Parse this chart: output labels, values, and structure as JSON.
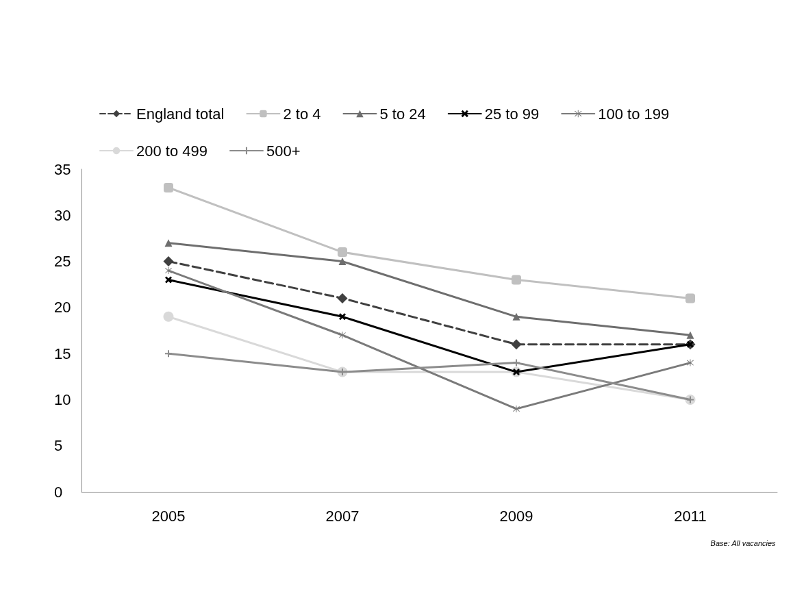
{
  "chart_data": {
    "type": "line",
    "categories": [
      "2005",
      "2007",
      "2009",
      "2011"
    ],
    "series": [
      {
        "name": "England total",
        "color": "#404040",
        "values": [
          25,
          21,
          16,
          16
        ],
        "marker": "diamond",
        "line_style": "dashed"
      },
      {
        "name": "2 to 4",
        "color": "#c0c0c0",
        "values": [
          33,
          26,
          23,
          21
        ],
        "marker": "square",
        "line_style": "solid"
      },
      {
        "name": "5 to 24",
        "color": "#6e6e6e",
        "values": [
          27,
          25,
          19,
          17
        ],
        "marker": "triangle",
        "line_style": "solid"
      },
      {
        "name": "25 to 99",
        "color": "#000000",
        "values": [
          23,
          19,
          13,
          16
        ],
        "marker": "cross",
        "line_style": "solid"
      },
      {
        "name": "100 to 199",
        "color": "#7a7a7a",
        "values": [
          24,
          17,
          9,
          14
        ],
        "marker": "star",
        "line_style": "solid"
      },
      {
        "name": "200 to 499",
        "color": "#d9d9d9",
        "values": [
          19,
          13,
          13,
          10
        ],
        "marker": "circle",
        "line_style": "solid"
      },
      {
        "name": "500+",
        "color": "#8c8c8c",
        "values": [
          15,
          13,
          14,
          10
        ],
        "marker": "plus",
        "line_style": "solid"
      }
    ],
    "ylim": [
      0,
      35
    ],
    "yticks": [
      0,
      5,
      10,
      15,
      20,
      25,
      30,
      35
    ],
    "grid": false,
    "legend": "top",
    "annotations": [
      "Base: All vacancies"
    ]
  }
}
